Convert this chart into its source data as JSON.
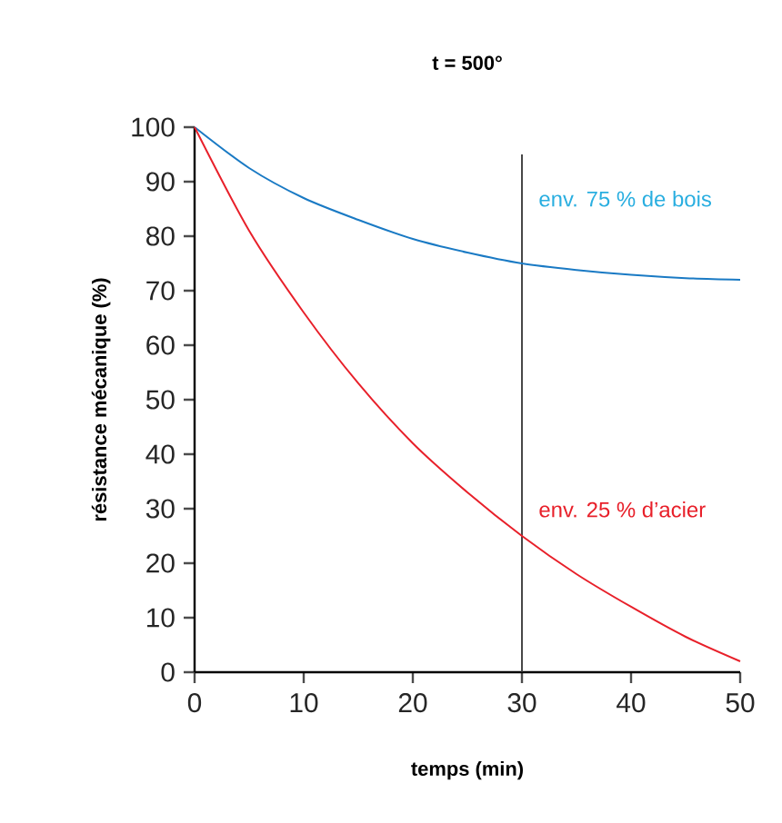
{
  "chart_data": {
    "type": "line",
    "title": "t = 500°",
    "xlabel": "temps (min)",
    "ylabel": "résistance mécanique (%)",
    "x": [
      0,
      5,
      10,
      15,
      20,
      25,
      30,
      35,
      40,
      45,
      50
    ],
    "series": [
      {
        "color": "#1a7ac4",
        "values": [
          100,
          92.5,
          87,
          83,
          79.5,
          77,
          75,
          73.8,
          72.9,
          72.3,
          72
        ]
      },
      {
        "color": "#e8202a",
        "values": [
          100,
          81,
          66,
          53,
          42,
          33,
          25,
          18,
          12,
          6.5,
          2
        ]
      }
    ],
    "xlim": [
      0,
      50
    ],
    "ylim": [
      0,
      100
    ],
    "xticks": [
      0,
      10,
      20,
      30,
      40,
      50
    ],
    "yticks": [
      0,
      10,
      20,
      30,
      40,
      50,
      60,
      70,
      80,
      90,
      100
    ],
    "grid": false,
    "marker": "none",
    "line_style": "solid",
    "ref_lines": [
      {
        "axis": "x",
        "value": 30,
        "color": "#333333"
      }
    ],
    "annotations": [
      {
        "text": "env. 75 % de bois",
        "x": 30,
        "y": 75
      },
      {
        "text": "env. 25 % d’acier",
        "x": 30,
        "y": 25
      }
    ]
  }
}
